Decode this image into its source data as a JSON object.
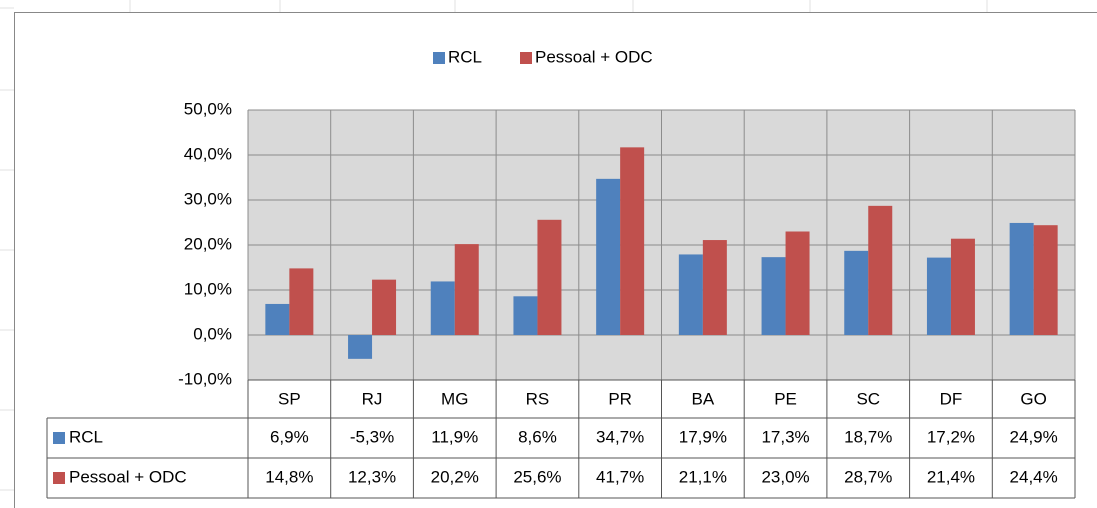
{
  "chart_data": {
    "type": "bar",
    "categories": [
      "SP",
      "RJ",
      "MG",
      "RS",
      "PR",
      "BA",
      "PE",
      "SC",
      "DF",
      "GO"
    ],
    "series": [
      {
        "name": "RCL",
        "color": "#4f81bd",
        "values": [
          6.9,
          -5.3,
          11.9,
          8.6,
          34.7,
          17.9,
          17.3,
          18.7,
          17.2,
          24.9
        ],
        "value_labels": [
          "6,9%",
          "-5,3%",
          "11,9%",
          "8,6%",
          "34,7%",
          "17,9%",
          "17,3%",
          "18,7%",
          "17,2%",
          "24,9%"
        ]
      },
      {
        "name": "Pessoal + ODC",
        "color": "#c0504d",
        "values": [
          14.8,
          12.3,
          20.2,
          25.6,
          41.7,
          21.1,
          23.0,
          28.7,
          21.4,
          24.4
        ],
        "value_labels": [
          "14,8%",
          "12,3%",
          "20,2%",
          "25,6%",
          "41,7%",
          "21,1%",
          "23,0%",
          "28,7%",
          "21,4%",
          "24,4%"
        ]
      }
    ],
    "ylim": [
      -10,
      50
    ],
    "yticks": [
      {
        "value": -10,
        "label": "-10,0%"
      },
      {
        "value": 0,
        "label": "0,0%"
      },
      {
        "value": 10,
        "label": "10,0%"
      },
      {
        "value": 20,
        "label": "20,0%"
      },
      {
        "value": 30,
        "label": "30,0%"
      },
      {
        "value": 40,
        "label": "40,0%"
      },
      {
        "value": 50,
        "label": "50,0%"
      }
    ],
    "grid": true,
    "legend": "top"
  }
}
